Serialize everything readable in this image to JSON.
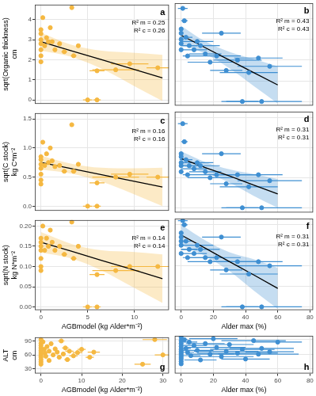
{
  "chart_data": [
    {
      "type": "scatter",
      "title": "a",
      "color": "#F5B841",
      "grid": true,
      "tick_labels": "y",
      "y_label": [
        "sqrt(Organic thickness)",
        "cm"
      ],
      "annotations": [
        "R² m = 0.25",
        "R² c = 0.26"
      ],
      "x": [
        0,
        0,
        0,
        0,
        0,
        0,
        0,
        0.2,
        0.4,
        0.6,
        0.8,
        1.0,
        1.2,
        1.5,
        2.0,
        2.5,
        3.3,
        3.5,
        4.0,
        5.0,
        6.0,
        6.0,
        8.0,
        9.5,
        12.5
      ],
      "values": [
        3.5,
        3.3,
        3.0,
        2.8,
        2.5,
        2.2,
        1.9,
        4.1,
        2.7,
        3.1,
        2.9,
        3.6,
        2.9,
        2.5,
        2.8,
        2.4,
        4.6,
        2.2,
        2.7,
        0.0,
        0.0,
        1.45,
        1.5,
        1.8,
        1.6
      ],
      "x_error": [
        0,
        0,
        0,
        0,
        0,
        0,
        0,
        0,
        0,
        0,
        0,
        0,
        0,
        0,
        0,
        0.3,
        0,
        0.3,
        0.2,
        0.5,
        0.4,
        0.8,
        2.5,
        2,
        1.2
      ],
      "fit": {
        "x": [
          0,
          3.25,
          6.5,
          9.75,
          13
        ],
        "values": [
          2.9,
          2.45,
          2.0,
          1.55,
          1.1
        ],
        "lower": [
          2.45,
          2.15,
          1.55,
          0.75,
          -0.05
        ],
        "upper": [
          3.35,
          2.75,
          2.45,
          2.35,
          2.25
        ]
      },
      "xlim": [
        -0.65,
        13.7
      ],
      "xticks": [
        0,
        5,
        10
      ],
      "ylim": [
        -0.2,
        4.75
      ],
      "yticks": [
        0,
        1,
        2,
        3,
        4
      ]
    },
    {
      "type": "scatter",
      "title": "b",
      "color": "#3F8FD2",
      "grid": true,
      "tick_labels": false,
      "annotations": [
        "R² m = 0.43",
        "R² c = 0.43"
      ],
      "x": [
        0,
        0,
        0,
        0,
        0,
        1,
        2,
        3,
        4,
        5,
        8,
        10,
        12,
        15,
        18,
        22,
        25,
        28,
        35,
        38,
        42,
        48,
        50,
        55
      ],
      "values": [
        3.5,
        3.3,
        3.0,
        2.8,
        2.5,
        4.5,
        3.9,
        3.1,
        2.2,
        2.7,
        2.5,
        2.9,
        2.7,
        2.3,
        1.9,
        2.2,
        3.3,
        1.5,
        2.0,
        0.0,
        1.4,
        2.1,
        0.0,
        1.7
      ],
      "x_error": [
        0,
        0,
        0,
        0,
        0,
        3,
        2,
        4,
        3,
        5,
        8,
        10,
        12,
        10,
        14,
        15,
        12,
        10,
        15,
        10,
        18,
        15,
        25,
        20
      ],
      "fit": {
        "x": [
          0,
          15,
          30,
          45,
          60
        ],
        "values": [
          3.2,
          2.6,
          2.0,
          1.4,
          0.8
        ],
        "lower": [
          2.75,
          2.3,
          1.6,
          0.75,
          -0.1
        ],
        "upper": [
          3.65,
          2.9,
          2.4,
          2.05,
          1.7
        ]
      },
      "xlim": [
        -4,
        82
      ],
      "xticks": [
        0,
        20,
        40,
        60,
        80
      ],
      "ylim": [
        -0.2,
        4.75
      ],
      "yticks": [
        0,
        1,
        2,
        3,
        4
      ]
    },
    {
      "type": "scatter",
      "title": "c",
      "color": "#F5B841",
      "grid": true,
      "tick_labels": "y",
      "y_label": [
        "sqrt(C stock)",
        "kg C*m⁻²"
      ],
      "annotations": [
        "R² m = 0.16",
        "R² c = 0.16"
      ],
      "x": [
        0,
        0,
        0,
        0,
        0,
        0,
        0,
        0.2,
        0.4,
        0.6,
        0.8,
        1.0,
        1.2,
        1.5,
        2.0,
        2.5,
        3.3,
        3.5,
        4.0,
        5.0,
        6.0,
        6.0,
        8.0,
        9.5,
        12.5
      ],
      "values": [
        0.85,
        0.8,
        0.72,
        0.65,
        0.55,
        0.45,
        0.38,
        1.1,
        0.7,
        0.9,
        0.75,
        1.0,
        0.78,
        0.68,
        0.7,
        0.6,
        1.4,
        0.6,
        0.72,
        0.0,
        0.0,
        0.4,
        0.5,
        0.55,
        0.5
      ],
      "x_error": [
        0,
        0,
        0,
        0,
        0,
        0,
        0,
        0,
        0,
        0,
        0,
        0,
        0,
        0,
        0,
        0.3,
        0,
        0.3,
        0.2,
        0.5,
        0.4,
        0.8,
        2.5,
        2,
        1.2
      ],
      "fit": {
        "x": [
          0,
          3.25,
          6.5,
          9.75,
          13
        ],
        "values": [
          0.75,
          0.645,
          0.54,
          0.435,
          0.33
        ],
        "lower": [
          0.63,
          0.56,
          0.42,
          0.22,
          0.0
        ],
        "upper": [
          0.87,
          0.73,
          0.66,
          0.65,
          0.66
        ]
      },
      "xlim": [
        -0.65,
        13.7
      ],
      "xticks": [
        0,
        5,
        10
      ],
      "ylim": [
        -0.08,
        1.6
      ],
      "yticks": [
        {
          "value": 0,
          "label": "0.0"
        },
        {
          "value": 0.5,
          "label": "0.5"
        },
        {
          "value": 1,
          "label": "1.0"
        },
        {
          "value": 1.5,
          "label": "1.5"
        }
      ]
    },
    {
      "type": "scatter",
      "title": "d",
      "color": "#3F8FD2",
      "grid": true,
      "tick_labels": false,
      "annotations": [
        "R² m = 0.31",
        "R² c = 0.31"
      ],
      "x": [
        0,
        0,
        0,
        0,
        0,
        1,
        2,
        3,
        4,
        5,
        8,
        10,
        12,
        15,
        18,
        22,
        25,
        28,
        35,
        38,
        42,
        48,
        50,
        55
      ],
      "values": [
        0.9,
        0.85,
        0.75,
        0.7,
        0.6,
        1.4,
        1.1,
        0.8,
        0.55,
        0.7,
        0.65,
        0.75,
        0.7,
        0.6,
        0.5,
        0.55,
        0.9,
        0.4,
        0.55,
        0.0,
        0.35,
        0.55,
        0.0,
        0.45
      ],
      "x_error": [
        0,
        0,
        0,
        0,
        0,
        3,
        2,
        4,
        3,
        5,
        8,
        10,
        12,
        10,
        14,
        15,
        12,
        10,
        15,
        10,
        18,
        15,
        25,
        20
      ],
      "fit": {
        "x": [
          0,
          15,
          30,
          45,
          60
        ],
        "values": [
          0.82,
          0.67,
          0.53,
          0.38,
          0.23
        ],
        "lower": [
          0.7,
          0.58,
          0.42,
          0.2,
          0.0
        ],
        "upper": [
          0.94,
          0.76,
          0.64,
          0.56,
          0.48
        ]
      },
      "xlim": [
        -4,
        82
      ],
      "xticks": [
        0,
        20,
        40,
        60,
        80
      ],
      "ylim": [
        -0.08,
        1.6
      ],
      "yticks": [
        {
          "value": 0,
          "label": "0.0"
        },
        {
          "value": 0.5,
          "label": "0.5"
        },
        {
          "value": 1,
          "label": "1.0"
        },
        {
          "value": 1.5,
          "label": "1.5"
        }
      ]
    },
    {
      "type": "scatter",
      "title": "e",
      "color": "#F5B841",
      "grid": true,
      "tick_labels": true,
      "y_label": [
        "sqrt(N stock)",
        "kg N*m⁻²"
      ],
      "x_label": "AGBmodel (kg Alder*m⁻²)",
      "annotations": [
        "R² m = 0.14",
        "R² c = 0.14"
      ],
      "x": [
        0,
        0,
        0,
        0,
        0,
        0,
        0,
        0.2,
        0.4,
        0.6,
        0.8,
        1.0,
        1.2,
        1.5,
        2.0,
        2.5,
        3.3,
        3.5,
        4.0,
        5.0,
        6.0,
        6.0,
        8.0,
        9.5,
        12.5
      ],
      "values": [
        0.17,
        0.16,
        0.15,
        0.14,
        0.12,
        0.1,
        0.09,
        0.2,
        0.14,
        0.17,
        0.15,
        0.19,
        0.16,
        0.14,
        0.15,
        0.13,
        0.21,
        0.12,
        0.15,
        0.0,
        0.0,
        0.08,
        0.09,
        0.1,
        0.1
      ],
      "x_error": [
        0,
        0,
        0,
        0,
        0,
        0,
        0,
        0,
        0,
        0,
        0,
        0,
        0,
        0,
        0,
        0.3,
        0,
        0.3,
        0.2,
        0.5,
        0.4,
        0.8,
        2.5,
        2,
        1.2
      ],
      "fit": {
        "x": [
          0,
          3.25,
          6.5,
          9.75,
          13
        ],
        "values": [
          0.16,
          0.138,
          0.115,
          0.093,
          0.07
        ],
        "lower": [
          0.135,
          0.12,
          0.09,
          0.05,
          0.01
        ],
        "upper": [
          0.185,
          0.156,
          0.14,
          0.136,
          0.13
        ]
      },
      "xlim": [
        -0.65,
        13.7
      ],
      "xticks": [
        0,
        5,
        10
      ],
      "ylim": [
        -0.008,
        0.215
      ],
      "yticks": [
        {
          "value": 0,
          "label": "0.00"
        },
        {
          "value": 0.05,
          "label": "0.05"
        },
        {
          "value": 0.1,
          "label": "0.10"
        },
        {
          "value": 0.15,
          "label": "0.15"
        },
        {
          "value": 0.2,
          "label": "0.20"
        }
      ]
    },
    {
      "type": "scatter",
      "title": "f",
      "color": "#3F8FD2",
      "grid": true,
      "tick_labels": "x",
      "x_label": "Alder max (%)",
      "annotations": [
        "R² m = 0.31",
        "R² c = 0.31"
      ],
      "x": [
        0,
        0,
        0,
        0,
        0,
        1,
        2,
        3,
        4,
        5,
        8,
        10,
        12,
        15,
        18,
        22,
        25,
        28,
        35,
        38,
        42,
        48,
        50,
        55
      ],
      "values": [
        0.18,
        0.17,
        0.16,
        0.15,
        0.13,
        0.21,
        0.2,
        0.16,
        0.12,
        0.14,
        0.13,
        0.15,
        0.14,
        0.12,
        0.11,
        0.12,
        0.17,
        0.09,
        0.11,
        0.0,
        0.08,
        0.11,
        0.0,
        0.1
      ],
      "x_error": [
        0,
        0,
        0,
        0,
        0,
        3,
        2,
        4,
        3,
        5,
        8,
        10,
        12,
        10,
        14,
        15,
        12,
        10,
        15,
        10,
        18,
        15,
        25,
        20
      ],
      "fit": {
        "x": [
          0,
          15,
          30,
          45,
          60
        ],
        "values": [
          0.175,
          0.143,
          0.11,
          0.078,
          0.045
        ],
        "lower": [
          0.15,
          0.124,
          0.087,
          0.04,
          -0.005
        ],
        "upper": [
          0.2,
          0.162,
          0.133,
          0.116,
          0.095
        ]
      },
      "xlim": [
        -4,
        82
      ],
      "xticks": [
        0,
        20,
        40,
        60,
        80
      ],
      "ylim": [
        -0.008,
        0.215
      ],
      "yticks": [
        {
          "value": 0,
          "label": "0.00"
        },
        {
          "value": 0.05,
          "label": "0.05"
        },
        {
          "value": 0.1,
          "label": "0.10"
        },
        {
          "value": 0.15,
          "label": "0.15"
        },
        {
          "value": 0.2,
          "label": "0.20"
        }
      ]
    },
    {
      "type": "scatter",
      "title": "g",
      "color": "#F5B841",
      "grid": true,
      "tick_labels": true,
      "y_label": [
        "ALT",
        "cm"
      ],
      "x_label": "AGBmodel (kg Alder*m⁻²)",
      "x": [
        0,
        0,
        0,
        0,
        0,
        0,
        0,
        0,
        0,
        0,
        0,
        0,
        0.5,
        0.8,
        1,
        1.2,
        1.5,
        2,
        2,
        2.5,
        3,
        3.5,
        4,
        4.5,
        5,
        5.5,
        6,
        6.5,
        7,
        8,
        9,
        10,
        12,
        13,
        25,
        28,
        30
      ],
      "values": [
        93,
        85,
        80,
        75,
        70,
        66,
        62,
        58,
        55,
        50,
        45,
        40,
        88,
        72,
        64,
        57,
        78,
        68,
        48,
        84,
        60,
        73,
        66,
        55,
        90,
        62,
        75,
        50,
        68,
        58,
        65,
        72,
        55,
        66,
        40,
        93,
        60
      ],
      "x_error": [
        0,
        0,
        0,
        0,
        0,
        0,
        0,
        0,
        0,
        0,
        0,
        0,
        0,
        0,
        0,
        0,
        0,
        0,
        0,
        0.5,
        0.4,
        0.5,
        0.5,
        0.6,
        0.8,
        0.6,
        0.8,
        0.8,
        1,
        1,
        1.2,
        1,
        1,
        1.5,
        2,
        3,
        2
      ],
      "xlim": [
        -1.5,
        31.5
      ],
      "xticks": [
        0,
        10,
        20,
        30
      ],
      "ylim": [
        20,
        98
      ],
      "yticks": [
        30,
        60,
        90
      ]
    },
    {
      "type": "scatter",
      "title": "h",
      "color": "#3F8FD2",
      "grid": true,
      "tick_labels": "x",
      "x_label": "Alder max (%)",
      "x": [
        0,
        0,
        0,
        0,
        0,
        0,
        0,
        0,
        0,
        0,
        0,
        0,
        2,
        3,
        4,
        5,
        6,
        8,
        10,
        12,
        15,
        18,
        20,
        22,
        25,
        28,
        30,
        35,
        38,
        40,
        45,
        48,
        50,
        55,
        60
      ],
      "values": [
        95,
        88,
        82,
        76,
        70,
        66,
        62,
        58,
        54,
        50,
        45,
        40,
        90,
        72,
        64,
        85,
        57,
        78,
        68,
        48,
        82,
        60,
        92,
        74,
        55,
        66,
        80,
        62,
        70,
        50,
        88,
        60,
        72,
        65,
        85
      ],
      "x_error": [
        0,
        0,
        0,
        0,
        0,
        0,
        0,
        0,
        0,
        0,
        0,
        0,
        2,
        3,
        4,
        5,
        6,
        8,
        10,
        10,
        12,
        15,
        15,
        18,
        20,
        20,
        15,
        25,
        20,
        15,
        20,
        25,
        20,
        15,
        15
      ],
      "xlim": [
        -4,
        82
      ],
      "xticks": [
        0,
        20,
        40,
        60,
        80
      ],
      "ylim": [
        20,
        98
      ],
      "yticks": [
        30,
        60,
        90
      ]
    }
  ]
}
